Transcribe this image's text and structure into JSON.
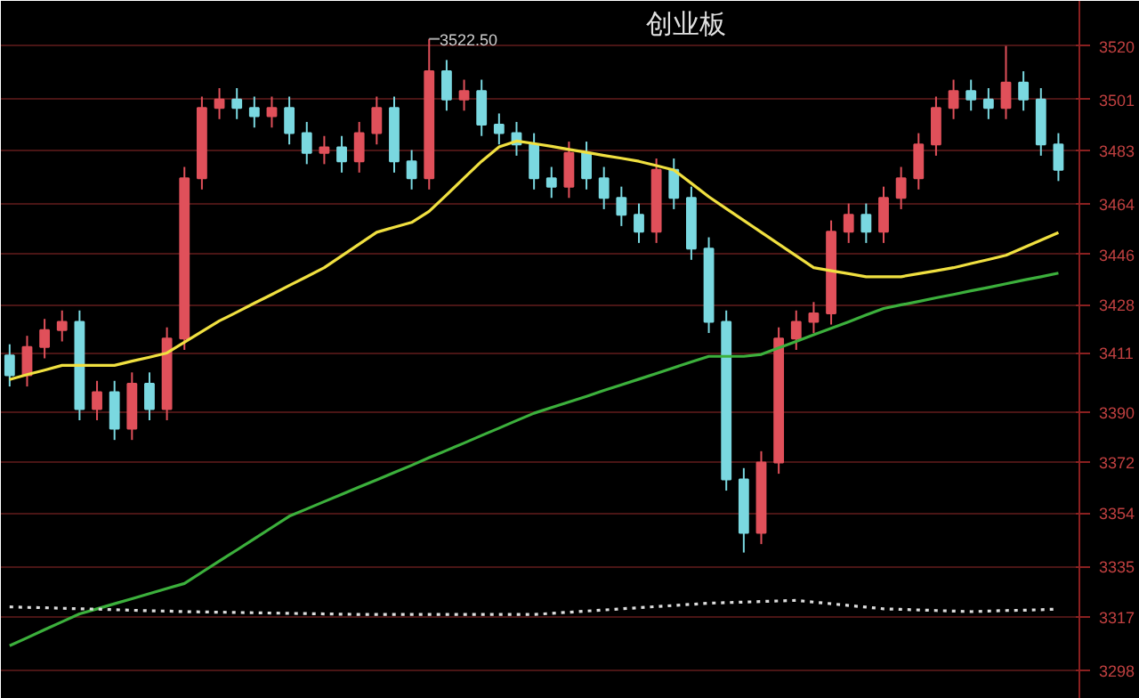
{
  "chart_data": {
    "type": "candlestick",
    "title": "创业板",
    "categories": [
      null,
      null,
      null,
      null,
      null,
      null,
      null,
      null,
      null,
      null,
      null,
      null,
      null,
      null,
      null,
      null,
      null,
      null,
      null,
      null,
      null,
      null,
      null,
      null,
      null,
      null,
      null,
      null,
      null,
      null,
      null,
      null,
      null,
      null,
      null,
      null,
      null,
      null,
      null,
      null,
      null,
      null,
      null,
      null,
      null,
      null,
      null,
      null,
      null,
      null,
      null,
      null,
      null,
      null,
      null,
      null,
      null,
      null,
      null,
      null,
      null
    ],
    "ohlc": [
      [
        3410,
        3414,
        3399,
        3403
      ],
      [
        3403,
        3417,
        3399,
        3413
      ],
      [
        3413,
        3423,
        3409,
        3419
      ],
      [
        3419,
        3426,
        3415,
        3422
      ],
      [
        3422,
        3426,
        3387,
        3391
      ],
      [
        3391,
        3401,
        3387,
        3397
      ],
      [
        3397,
        3401,
        3380,
        3384
      ],
      [
        3384,
        3404,
        3380,
        3400
      ],
      [
        3400,
        3404,
        3387,
        3391
      ],
      [
        3391,
        3420,
        3387,
        3416
      ],
      [
        3416,
        3477,
        3412,
        3473
      ],
      [
        3473,
        3502,
        3469,
        3498
      ],
      [
        3498,
        3505,
        3494,
        3501
      ],
      [
        3501,
        3505,
        3494,
        3498
      ],
      [
        3498,
        3502,
        3491,
        3495
      ],
      [
        3495,
        3502,
        3491,
        3498
      ],
      [
        3498,
        3502,
        3485,
        3489
      ],
      [
        3489,
        3493,
        3478,
        3482
      ],
      [
        3482,
        3488,
        3478,
        3484
      ],
      [
        3484,
        3488,
        3475,
        3479
      ],
      [
        3479,
        3493,
        3475,
        3489
      ],
      [
        3489,
        3502,
        3485,
        3498
      ],
      [
        3498,
        3502,
        3475,
        3479
      ],
      [
        3479,
        3483,
        3469,
        3473
      ],
      [
        3473,
        3522.5,
        3469,
        3511
      ],
      [
        3511,
        3515,
        3497,
        3501
      ],
      [
        3501,
        3508,
        3497,
        3504
      ],
      [
        3504,
        3508,
        3488,
        3492
      ],
      [
        3492,
        3496,
        3485,
        3489
      ],
      [
        3489,
        3493,
        3481,
        3485
      ],
      [
        3485,
        3489,
        3469,
        3473
      ],
      [
        3473,
        3477,
        3466,
        3470
      ],
      [
        3470,
        3486,
        3466,
        3482
      ],
      [
        3482,
        3486,
        3469,
        3473
      ],
      [
        3473,
        3477,
        3462,
        3466
      ],
      [
        3466,
        3470,
        3456,
        3460
      ],
      [
        3460,
        3464,
        3450,
        3454
      ],
      [
        3454,
        3480,
        3450,
        3476
      ],
      [
        3476,
        3480,
        3462,
        3466
      ],
      [
        3466,
        3470,
        3444,
        3448
      ],
      [
        3448,
        3452,
        3418,
        3422
      ],
      [
        3422,
        3426,
        3362,
        3366
      ],
      [
        3366,
        3370,
        3340,
        3347
      ],
      [
        3347,
        3376,
        3343,
        3372
      ],
      [
        3372,
        3420,
        3368,
        3416
      ],
      [
        3416,
        3426,
        3412,
        3422
      ],
      [
        3422,
        3429,
        3418,
        3425
      ],
      [
        3425,
        3458,
        3421,
        3454
      ],
      [
        3454,
        3464,
        3450,
        3460
      ],
      [
        3460,
        3464,
        3450,
        3454
      ],
      [
        3454,
        3470,
        3450,
        3466
      ],
      [
        3466,
        3477,
        3462,
        3473
      ],
      [
        3473,
        3489,
        3469,
        3485
      ],
      [
        3485,
        3502,
        3481,
        3498
      ],
      [
        3498,
        3508,
        3494,
        3504
      ],
      [
        3504,
        3508,
        3497,
        3501
      ],
      [
        3501,
        3505,
        3494,
        3498
      ],
      [
        3498,
        3520,
        3494,
        3507
      ],
      [
        3507,
        3511,
        3497,
        3501
      ],
      [
        3501,
        3505,
        3481,
        3485
      ],
      [
        3485,
        3489,
        3472,
        3476
      ]
    ],
    "colors": [
      "#7ad8e0",
      "#e0505a",
      "#e0505a",
      "#e0505a",
      "#7ad8e0",
      "#e0505a",
      "#7ad8e0",
      "#e0505a",
      "#7ad8e0",
      "#e0505a",
      "#e0505a",
      "#e0505a",
      "#e0505a",
      "#7ad8e0",
      "#7ad8e0",
      "#e0505a",
      "#7ad8e0",
      "#7ad8e0",
      "#e0505a",
      "#7ad8e0",
      "#e0505a",
      "#e0505a",
      "#7ad8e0",
      "#7ad8e0",
      "#e0505a",
      "#7ad8e0",
      "#e0505a",
      "#7ad8e0",
      "#7ad8e0",
      "#7ad8e0",
      "#7ad8e0",
      "#7ad8e0",
      "#e0505a",
      "#7ad8e0",
      "#7ad8e0",
      "#7ad8e0",
      "#7ad8e0",
      "#e0505a",
      "#7ad8e0",
      "#7ad8e0",
      "#7ad8e0",
      "#7ad8e0",
      "#7ad8e0",
      "#e0505a",
      "#e0505a",
      "#e0505a",
      "#e0505a",
      "#e0505a",
      "#e0505a",
      "#7ad8e0",
      "#e0505a",
      "#e0505a",
      "#e0505a",
      "#e0505a",
      "#e0505a",
      "#7ad8e0",
      "#7ad8e0",
      "#e0505a",
      "#7ad8e0",
      "#7ad8e0",
      "#7ad8e0"
    ],
    "series": [
      {
        "type": "line",
        "color": "#f0e040",
        "line_style": "solid",
        "values": [
          3401.5,
          3403.2,
          3404.8,
          3406.5,
          3406.5,
          3406.5,
          3406.5,
          3408.0,
          3409.4,
          3410.9,
          3414.7,
          3418.5,
          3422.3,
          3425.4,
          3428.6,
          3431.7,
          3434.9,
          3438.0,
          3441.2,
          3445.4,
          3449.6,
          3453.8,
          3455.6,
          3457.3,
          3461.2,
          3467.1,
          3473.1,
          3479.0,
          3484.1,
          3486.2,
          3485.3,
          3484.3,
          3483.2,
          3482.2,
          3481.1,
          3480.1,
          3479.0,
          3477.5,
          3475.9,
          3471.2,
          3466.4,
          3462.2,
          3458.0,
          3453.8,
          3449.6,
          3445.4,
          3441.2,
          3440.1,
          3439.1,
          3438.0,
          3438.0,
          3438.0,
          3439.1,
          3440.1,
          3441.2,
          3442.7,
          3444.1,
          3445.6,
          3448.3,
          3451.0,
          3453.7
        ]
      },
      {
        "type": "line",
        "color": "#3cb03c",
        "line_style": "solid",
        "values": [
          3306.9,
          3309.7,
          3312.6,
          3315.4,
          3318.2,
          3320.0,
          3321.8,
          3323.6,
          3325.4,
          3327.2,
          3329.0,
          3333.0,
          3337.0,
          3340.9,
          3344.9,
          3348.9,
          3352.9,
          3355.5,
          3358.1,
          3360.7,
          3363.3,
          3365.8,
          3368.4,
          3371.0,
          3373.7,
          3376.3,
          3378.9,
          3381.6,
          3384.2,
          3386.9,
          3389.5,
          3391.5,
          3393.5,
          3395.5,
          3397.6,
          3399.6,
          3401.6,
          3403.6,
          3405.7,
          3407.7,
          3409.7,
          3409.7,
          3409.7,
          3410.4,
          3412.7,
          3415.0,
          3417.4,
          3419.7,
          3422.0,
          3424.4,
          3426.7,
          3428.0,
          3429.2,
          3430.5,
          3431.7,
          3433.0,
          3434.2,
          3435.5,
          3436.8,
          3438.0,
          3439.3
        ]
      },
      {
        "type": "line",
        "color": "#dddddd",
        "line_style": "dotted",
        "values": [
          3320.7,
          3320.5,
          3320.4,
          3320.2,
          3320.0,
          3319.9,
          3319.7,
          3319.5,
          3319.3,
          3319.2,
          3319.0,
          3318.9,
          3318.8,
          3318.7,
          3318.6,
          3318.5,
          3318.4,
          3318.3,
          3318.2,
          3318.1,
          3318.0,
          3318.0,
          3318.0,
          3318.0,
          3318.0,
          3318.0,
          3318.0,
          3318.0,
          3318.0,
          3318.0,
          3318.0,
          3318.4,
          3318.8,
          3319.2,
          3319.6,
          3320.0,
          3320.4,
          3320.8,
          3321.2,
          3321.6,
          3322.0,
          3322.2,
          3322.4,
          3322.6,
          3322.8,
          3323.0,
          3322.4,
          3321.8,
          3321.2,
          3320.6,
          3320.0,
          3319.8,
          3319.6,
          3319.4,
          3319.2,
          3319.0,
          3319.2,
          3319.4,
          3319.5,
          3319.7,
          3319.9
        ]
      }
    ],
    "ylim": [
      3288,
      3536
    ],
    "yticks": [
      3298,
      3317,
      3335,
      3354,
      3372,
      3390,
      3411,
      3428,
      3446,
      3464,
      3483,
      3501,
      3520
    ],
    "tick_labels": "y",
    "grid": "y",
    "annotations": [
      "3522.50"
    ]
  }
}
